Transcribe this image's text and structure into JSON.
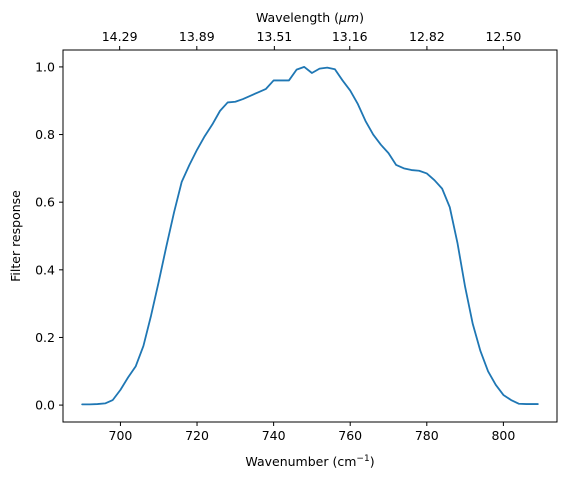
{
  "chart_data": {
    "type": "line",
    "title": "",
    "xlabel": "Wavenumber (cm",
    "xlabel_superscript": "−1",
    "xlabel_suffix": ")",
    "x2label": "Wavelength (",
    "x2label_symbol": "μm",
    "x2label_suffix": ")",
    "ylabel": "Filter response",
    "xlim": [
      685,
      814
    ],
    "ylim": [
      -0.05,
      1.05
    ],
    "x_ticks": [
      700,
      720,
      740,
      760,
      780,
      800
    ],
    "x_tick_labels": [
      "700",
      "720",
      "740",
      "760",
      "780",
      "800"
    ],
    "y_ticks": [
      0.0,
      0.2,
      0.4,
      0.6,
      0.8,
      1.0
    ],
    "y_tick_labels": [
      "0.0",
      "0.2",
      "0.4",
      "0.6",
      "0.8",
      "1.0"
    ],
    "x2_ticks": [
      14.29,
      13.89,
      13.51,
      13.16,
      12.82,
      12.5
    ],
    "x2_tick_labels": [
      "14.29",
      "13.89",
      "13.51",
      "13.16",
      "12.82",
      "12.50"
    ],
    "grid": false,
    "line_color": "#1f77b4",
    "series": [
      {
        "x": [
          690,
          692,
          694,
          696,
          698,
          700,
          702,
          704,
          706,
          708,
          710,
          712,
          714,
          716,
          718,
          720,
          722,
          724,
          726,
          728,
          730,
          732,
          734,
          736,
          738,
          740,
          742,
          744,
          746,
          748,
          750,
          752,
          754,
          756,
          758,
          760,
          762,
          764,
          766,
          768,
          770,
          772,
          774,
          776,
          778,
          780,
          782,
          784,
          786,
          788,
          790,
          792,
          794,
          796,
          798,
          800,
          802,
          804,
          806,
          808,
          809
        ],
        "y": [
          0.002,
          0.002,
          0.003,
          0.005,
          0.015,
          0.045,
          0.082,
          0.115,
          0.175,
          0.265,
          0.365,
          0.47,
          0.57,
          0.66,
          0.71,
          0.755,
          0.795,
          0.83,
          0.87,
          0.895,
          0.897,
          0.905,
          0.915,
          0.925,
          0.935,
          0.96,
          0.96,
          0.96,
          0.992,
          1.0,
          0.982,
          0.995,
          0.998,
          0.993,
          0.96,
          0.93,
          0.89,
          0.84,
          0.8,
          0.77,
          0.745,
          0.71,
          0.7,
          0.695,
          0.693,
          0.685,
          0.665,
          0.64,
          0.585,
          0.48,
          0.35,
          0.24,
          0.16,
          0.1,
          0.06,
          0.03,
          0.015,
          0.004,
          0.003,
          0.003,
          0.003
        ]
      }
    ]
  }
}
